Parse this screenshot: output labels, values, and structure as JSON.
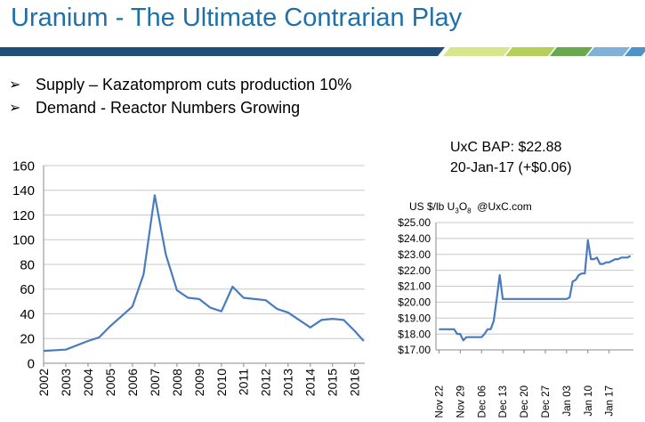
{
  "header": {
    "title": "Uranium - The Ultimate Contrarian Play",
    "title_color": "#1f6fa8",
    "bar_colors": [
      "#1f4e79",
      "#d7e68a",
      "#b4cf5c",
      "#6aa84f",
      "#7fb2d6",
      "#4f94c8"
    ]
  },
  "bullets": [
    {
      "marker": "➢",
      "text": "Supply – Kazatomprom cuts production 10%"
    },
    {
      "marker": "➢",
      "text": "Demand - Reactor Numbers Growing"
    }
  ],
  "quote": {
    "line1": "UxC BAP: $22.88",
    "line2": "20-Jan-17 (+$0.06)"
  },
  "unit_label": {
    "prefix": "US $/lb U",
    "sub1": "3",
    "mid": "O",
    "sub2": "8",
    "suffix": "  @UxC.com"
  },
  "chart_data": [
    {
      "type": "line",
      "title": "",
      "xlabel": "",
      "ylabel": "",
      "ylim": [
        0,
        160
      ],
      "yticks": [
        0,
        20,
        40,
        60,
        80,
        100,
        120,
        140,
        160
      ],
      "x_tick_labels": [
        "2002",
        "2003",
        "2004",
        "2005",
        "2006",
        "2007",
        "2008",
        "2009",
        "2010",
        "2011",
        "2012",
        "2013",
        "2014",
        "2015",
        "2016"
      ],
      "xlim": [
        2002,
        2016.45
      ],
      "grid": "horizontal",
      "line_color": "#4a7bbf",
      "series": [
        {
          "x": [
            2002.0,
            2003.0,
            2004.0,
            2004.5,
            2005.0,
            2005.5,
            2006.0,
            2006.5,
            2007.0,
            2007.5,
            2008.0,
            2008.5,
            2009.0,
            2009.5,
            2010.0,
            2010.5,
            2011.0,
            2011.5,
            2012.0,
            2012.5,
            2013.0,
            2013.5,
            2014.0,
            2014.5,
            2015.0,
            2015.5,
            2016.0,
            2016.4
          ],
          "y": [
            10,
            11,
            18,
            21,
            30,
            38,
            46,
            72,
            136,
            88,
            59,
            53,
            52,
            45,
            42,
            62,
            53,
            52,
            51,
            44,
            41,
            35,
            29,
            35,
            36,
            35,
            26,
            18
          ]
        }
      ]
    },
    {
      "type": "line",
      "title": "",
      "xlabel": "",
      "ylabel": "US $/lb U3O8",
      "ylim": [
        17.0,
        25.0
      ],
      "yticks": [
        17,
        18,
        19,
        20,
        21,
        22,
        23,
        24,
        25
      ],
      "ytick_labels": [
        "$17.00",
        "$18.00",
        "$19.00",
        "$20.00",
        "$21.00",
        "$22.00",
        "$23.00",
        "$24.00",
        "$25.00"
      ],
      "x_tick_labels": [
        "Nov 22",
        "Nov 29",
        "Dec 06",
        "Dec 13",
        "Dec 20",
        "Dec 27",
        "Jan 03",
        "Jan 10",
        "Jan 17"
      ],
      "x_tick_positions": [
        0,
        7,
        14,
        21,
        28,
        35,
        42,
        49,
        56
      ],
      "xlim": [
        -1,
        64
      ],
      "grid": "horizontal",
      "line_color": "#4a7bbf",
      "series": [
        {
          "x": [
            0,
            4,
            5,
            6,
            7,
            8,
            9,
            12,
            13,
            14,
            15,
            16,
            17,
            18,
            19,
            20,
            21,
            22,
            23,
            24,
            26,
            28,
            32,
            36,
            40,
            42,
            43,
            44,
            45,
            46,
            47,
            48,
            49,
            50,
            51,
            52,
            53,
            54,
            55,
            56,
            57,
            58,
            59,
            60,
            61,
            62,
            63
          ],
          "y": [
            18.3,
            18.3,
            18.3,
            18.0,
            18.0,
            17.6,
            17.8,
            17.8,
            17.8,
            17.8,
            18.0,
            18.3,
            18.3,
            18.8,
            20.2,
            21.7,
            20.2,
            20.2,
            20.2,
            20.2,
            20.2,
            20.2,
            20.2,
            20.2,
            20.2,
            20.2,
            20.3,
            21.3,
            21.4,
            21.7,
            21.8,
            21.8,
            23.9,
            22.7,
            22.7,
            22.8,
            22.4,
            22.4,
            22.5,
            22.5,
            22.6,
            22.7,
            22.7,
            22.8,
            22.8,
            22.8,
            22.9
          ]
        }
      ]
    }
  ]
}
